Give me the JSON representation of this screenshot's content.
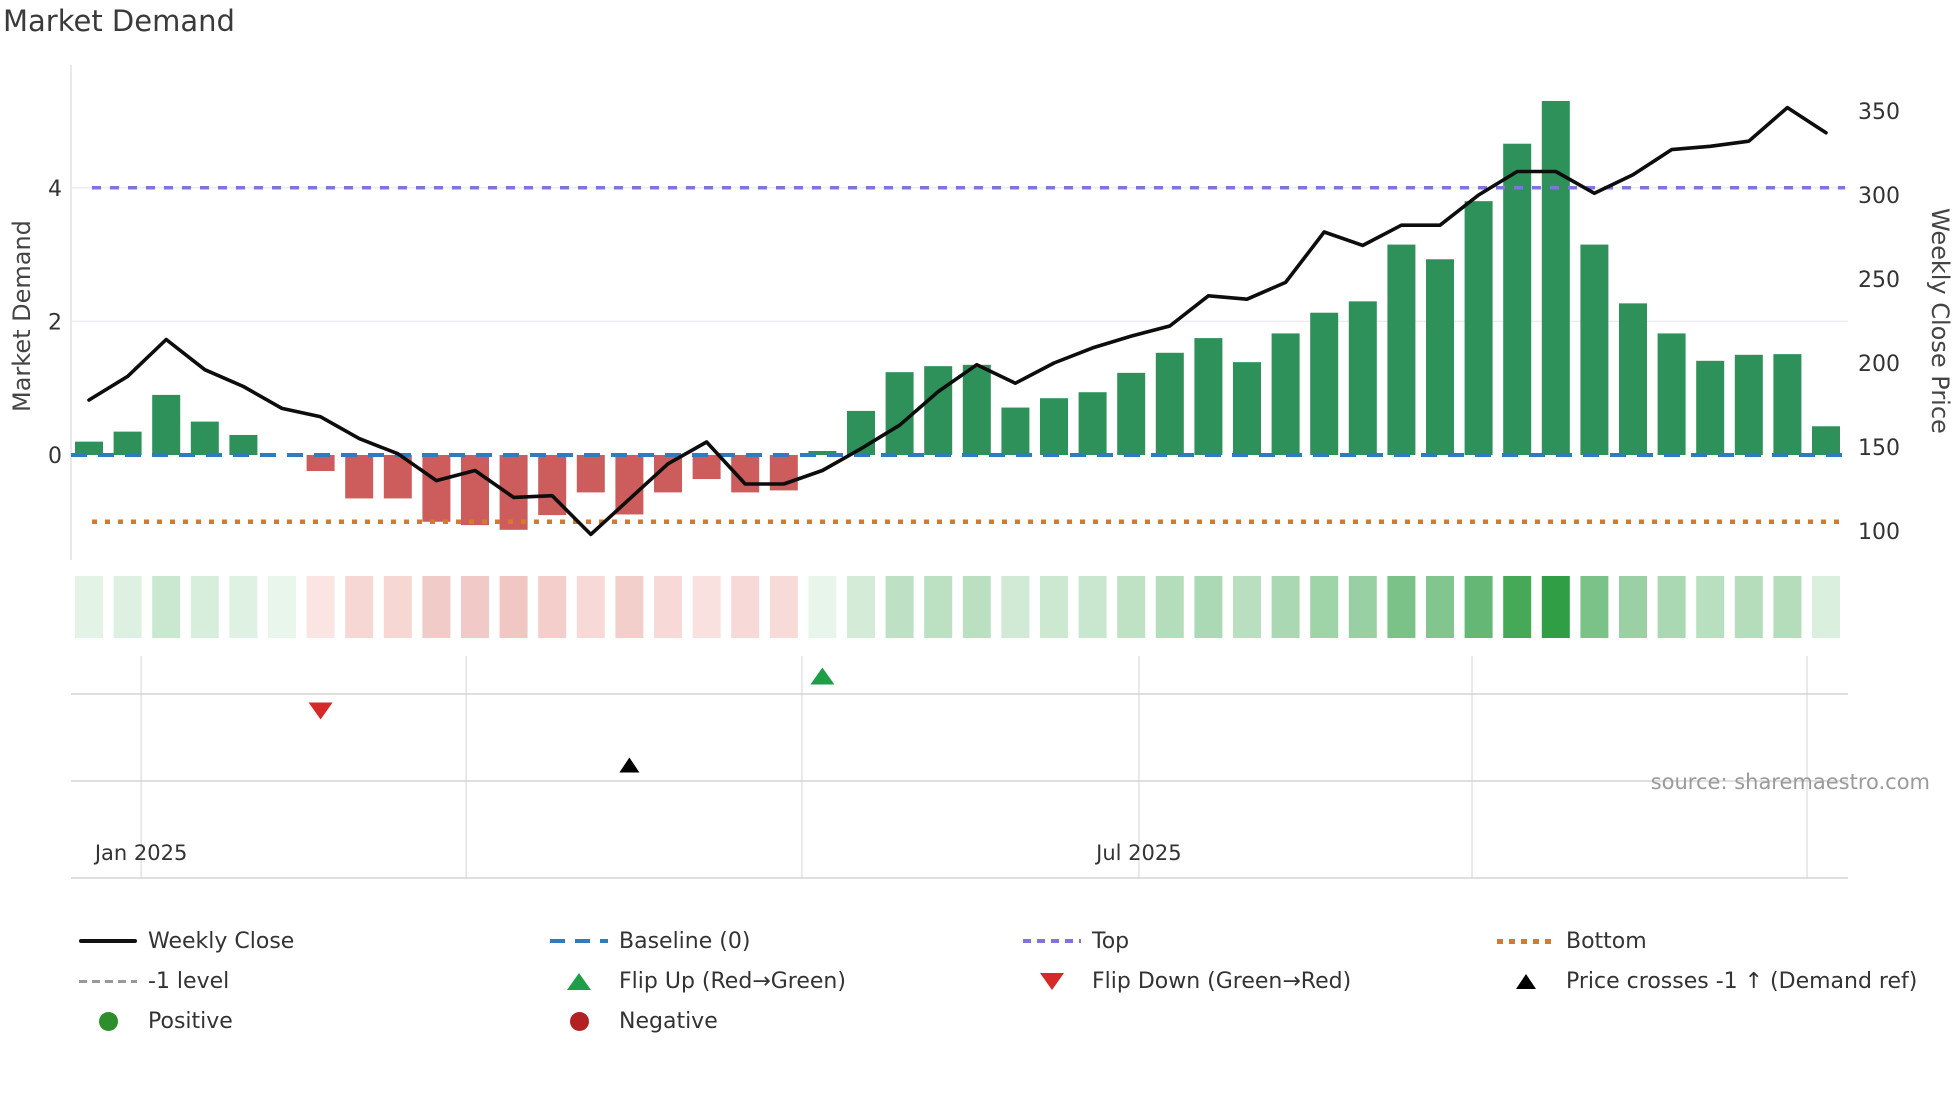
{
  "title": "Market Demand",
  "source": "source: sharemaestro.com",
  "colors": {
    "bar_positive": "#2e9159",
    "bar_negative": "#cd5c5c",
    "price_line": "#0d0d0d",
    "baseline": "#2f7bbf",
    "top": "#7d74e0",
    "bottom": "#d27b2e",
    "minus1": "#999999",
    "flip_up": "#1f9e48",
    "flip_down": "#d62a28",
    "price_cross": "#000000",
    "positive_dot": "#2c8f2c",
    "negative_dot": "#b22222",
    "heat_pos_min": "#eaf6ec",
    "heat_pos_max": "#2f9e44",
    "heat_neg_min": "#fdedec",
    "heat_neg_max": "#c0392b",
    "grid": "#ececf0",
    "spine": "#e2e2e6",
    "panel_line": "#cccccc",
    "panel_vline": "#e3e3e7",
    "tick_text": "#333333",
    "title_text": "#3a3a3a",
    "source_text": "#9a9a9a"
  },
  "legend": {
    "columns": [
      {
        "items": [
          {
            "label": "Weekly Close"
          },
          {
            "label": "-1 level"
          },
          {
            "label": "Positive"
          }
        ]
      },
      {
        "items": [
          {
            "label": "Baseline (0)"
          },
          {
            "label": "Flip Up (Red→Green)"
          },
          {
            "label": "Negative"
          }
        ]
      },
      {
        "items": [
          {
            "label": "Top"
          },
          {
            "label": "Flip Down (Green→Red)"
          }
        ]
      },
      {
        "items": [
          {
            "label": "Bottom"
          },
          {
            "label": "Price crosses -1 ↑ (Demand ref)"
          }
        ]
      }
    ]
  },
  "chart_data": {
    "type": "bar+line+heatmap",
    "title": "Market Demand",
    "x_unit": "week",
    "n_weeks": 46,
    "x_tick_labels": [
      {
        "label": "Jan 2025",
        "week_pos": 1.35
      },
      {
        "label": "Jul 2025",
        "week_pos": 27.2
      }
    ],
    "month_gridline_week_pos": [
      1.35,
      9.77,
      18.47,
      27.2,
      35.83,
      44.51
    ],
    "demand_axis": {
      "label": "Market Demand",
      "ticks": [
        0,
        2,
        4
      ],
      "range": [
        -1.6,
        5.85
      ]
    },
    "price_axis": {
      "label": "Weekly Close Price",
      "ticks": [
        100,
        150,
        200,
        250,
        300,
        350
      ],
      "range": [
        83,
        377
      ]
    },
    "baseline": 0,
    "top_level": 4,
    "bottom_level": -1,
    "minus1_level": -1,
    "demand": [
      0.2,
      0.35,
      0.9,
      0.5,
      0.3,
      0.03,
      -0.24,
      -0.65,
      -0.65,
      -1.0,
      -1.05,
      -1.12,
      -0.9,
      -0.56,
      -0.89,
      -0.56,
      -0.36,
      -0.56,
      -0.53,
      0.06,
      0.66,
      1.24,
      1.33,
      1.35,
      0.71,
      0.85,
      0.94,
      1.23,
      1.53,
      1.75,
      1.39,
      1.82,
      2.13,
      2.3,
      3.15,
      2.93,
      3.8,
      4.66,
      5.3,
      3.15,
      2.27,
      1.82,
      1.41,
      1.5,
      1.51,
      0.43
    ],
    "price_weekly_close": [
      178,
      192,
      214,
      196,
      186,
      173,
      168,
      155,
      146,
      130,
      136,
      120,
      121,
      98,
      119,
      140,
      153,
      128,
      128,
      136,
      149,
      163,
      183,
      199,
      188,
      200,
      209,
      216,
      222,
      240,
      238,
      248,
      278,
      270,
      282,
      282,
      300,
      314,
      314,
      301,
      312,
      327,
      329,
      332,
      352,
      337
    ],
    "heatmap": "color intensity derived from demand values (green positive, red negative)",
    "events": {
      "flip_up_week": 20,
      "flip_down_week": 7,
      "price_cross_minus1_week": 15
    }
  }
}
